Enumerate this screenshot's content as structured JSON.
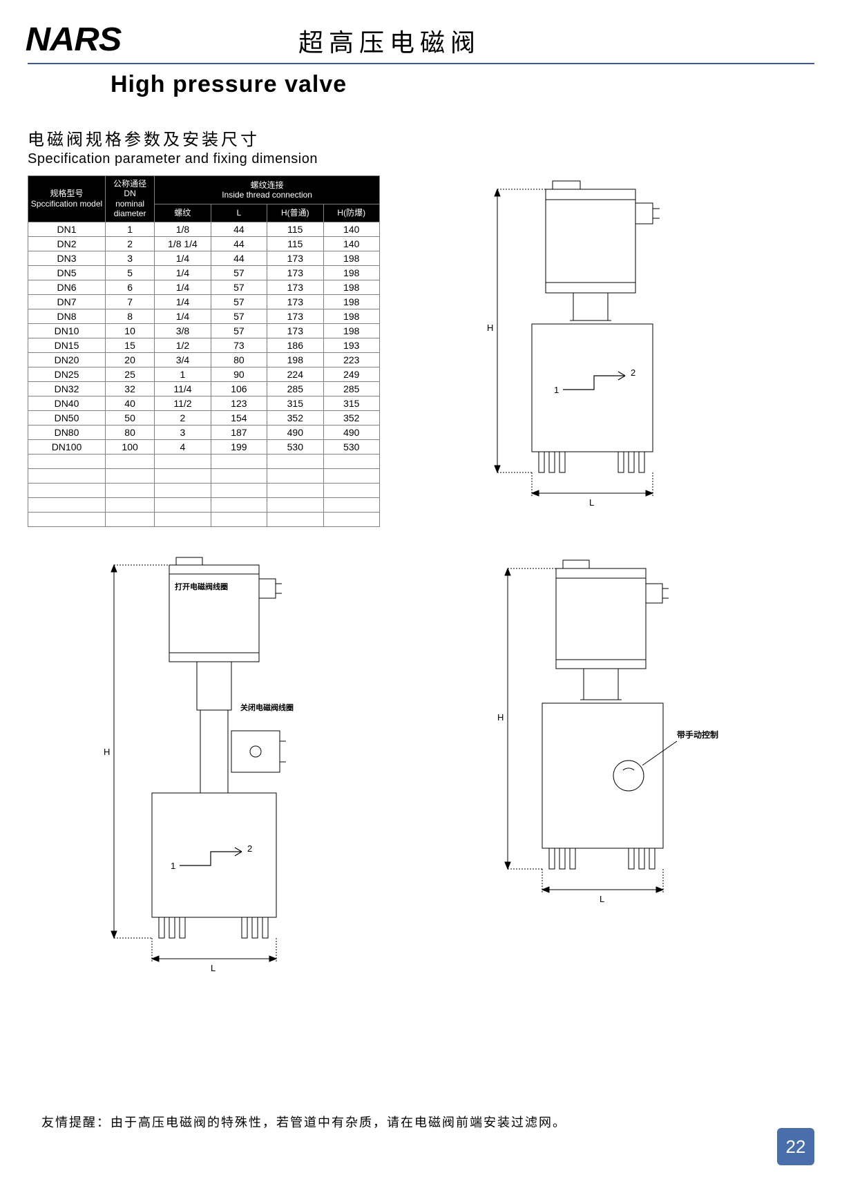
{
  "brand": "NARS",
  "title_cn": "超高压电磁阀",
  "title_en": "High pressure valve",
  "section_cn": "电磁阀规格参数及安装尺寸",
  "section_en": "Specification parameter and fixing dimension",
  "table": {
    "header": {
      "model_cn": "规格型号",
      "model_en": "Spccification model",
      "dn_cn": "公称通径 DN",
      "dn_en": "nominal diameter",
      "thread_group_cn": "螺纹连接",
      "thread_group_en": "Inside thread connection",
      "thread": "螺纹",
      "L": "L",
      "H_normal": "H(普通)",
      "H_proof": "H(防爆)"
    },
    "rows": [
      {
        "model": "DN1",
        "dn": "1",
        "thread": "1/8",
        "L": "44",
        "Hn": "115",
        "Hp": "140"
      },
      {
        "model": "DN2",
        "dn": "2",
        "thread": "1/8 1/4",
        "L": "44",
        "Hn": "115",
        "Hp": "140"
      },
      {
        "model": "DN3",
        "dn": "3",
        "thread": "1/4",
        "L": "44",
        "Hn": "173",
        "Hp": "198"
      },
      {
        "model": "DN5",
        "dn": "5",
        "thread": "1/4",
        "L": "57",
        "Hn": "173",
        "Hp": "198"
      },
      {
        "model": "DN6",
        "dn": "6",
        "thread": "1/4",
        "L": "57",
        "Hn": "173",
        "Hp": "198"
      },
      {
        "model": "DN7",
        "dn": "7",
        "thread": "1/4",
        "L": "57",
        "Hn": "173",
        "Hp": "198"
      },
      {
        "model": "DN8",
        "dn": "8",
        "thread": "1/4",
        "L": "57",
        "Hn": "173",
        "Hp": "198"
      },
      {
        "model": "DN10",
        "dn": "10",
        "thread": "3/8",
        "L": "57",
        "Hn": "173",
        "Hp": "198"
      },
      {
        "model": "DN15",
        "dn": "15",
        "thread": "1/2",
        "L": "73",
        "Hn": "186",
        "Hp": "193"
      },
      {
        "model": "DN20",
        "dn": "20",
        "thread": "3/4",
        "L": "80",
        "Hn": "198",
        "Hp": "223"
      },
      {
        "model": "DN25",
        "dn": "25",
        "thread": "1",
        "L": "90",
        "Hn": "224",
        "Hp": "249"
      },
      {
        "model": "DN32",
        "dn": "32",
        "thread": "11/4",
        "L": "106",
        "Hn": "285",
        "Hp": "285"
      },
      {
        "model": "DN40",
        "dn": "40",
        "thread": "11/2",
        "L": "123",
        "Hn": "315",
        "Hp": "315"
      },
      {
        "model": "DN50",
        "dn": "50",
        "thread": "2",
        "L": "154",
        "Hn": "352",
        "Hp": "352"
      },
      {
        "model": "DN80",
        "dn": "80",
        "thread": "3",
        "L": "187",
        "Hn": "490",
        "Hp": "490"
      },
      {
        "model": "DN100",
        "dn": "100",
        "thread": "4",
        "L": "199",
        "Hn": "530",
        "Hp": "530"
      }
    ],
    "empty_rows": 5
  },
  "diagrams": {
    "stroke": "#000000",
    "stroke_width": 1,
    "label_H": "H",
    "label_L": "L",
    "label_1": "1",
    "label_2": "2",
    "d1_label_open": "打开电磁阀线圈",
    "d2_label_close": "关闭电磁阀线圈",
    "d3_label_manual": "带手动控制"
  },
  "footer_note": "友情提醒：由于高压电磁阀的特殊性，若管道中有杂质，请在电磁阀前端安装过滤网。",
  "page_number": "22",
  "colors": {
    "rule": "#3b5998",
    "badge_bg": "#4a6ea9",
    "badge_fg": "#ffffff",
    "table_header_bg": "#000000",
    "table_header_fg": "#ffffff",
    "table_border": "#808080"
  }
}
